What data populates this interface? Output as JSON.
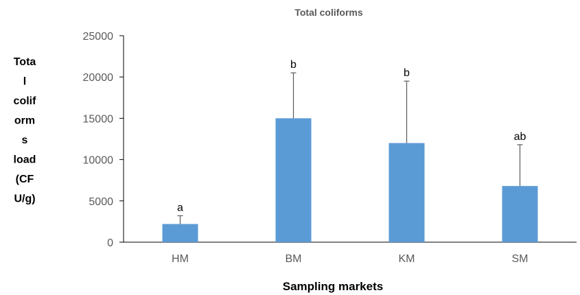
{
  "chart_data": {
    "type": "bar",
    "title": "Total coliforms",
    "xlabel": "Sampling markets",
    "ylabel_lines": [
      "Tota",
      "l",
      "colif",
      "orm",
      "s",
      "load",
      "(CF",
      "U/g)"
    ],
    "categories": [
      "HM",
      "BM",
      "KM",
      "SM"
    ],
    "values": [
      2200,
      15000,
      12000,
      6800
    ],
    "error_upper": [
      1000,
      5500,
      7500,
      5000
    ],
    "significance_labels": [
      "a",
      "b",
      "b",
      "ab"
    ],
    "ylim": [
      0,
      25000
    ],
    "yticks": [
      0,
      5000,
      10000,
      15000,
      20000,
      25000
    ],
    "ytick_labels": [
      "0",
      "5000",
      "10000",
      "15000",
      "20000",
      "25000"
    ],
    "grid": false,
    "bar_color": "#5B9BD5",
    "error_color": "#595959",
    "axis_color": "#000000"
  }
}
